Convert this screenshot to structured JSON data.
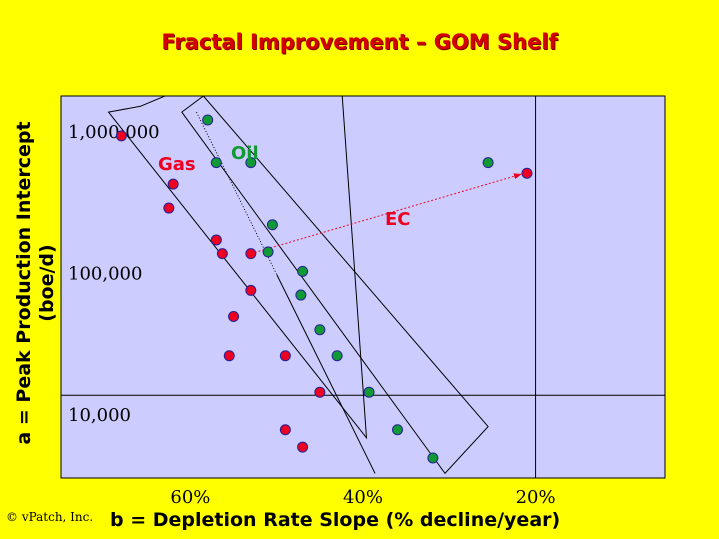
{
  "chart_data": {
    "type": "scatter",
    "title": "Fractal Improvement – GOM Shelf",
    "xlabel": "b = Depletion Rate Slope (% decline/year)",
    "ylabel_lines": [
      "a = Peak Production Intercept",
      "(boe/d)"
    ],
    "xlim": [
      75,
      5
    ],
    "y_scale": "log",
    "ylim": [
      2600,
      1300000
    ],
    "y_ticks": [
      {
        "value": 1000000,
        "label": "1,000,000"
      },
      {
        "value": 100000,
        "label": "100,000"
      },
      {
        "value": 10000,
        "label": "10,000"
      }
    ],
    "x_ticks": [
      {
        "value": 60,
        "label": "60%"
      },
      {
        "value": 40,
        "label": "40%"
      },
      {
        "value": 20,
        "label": "20%"
      }
    ],
    "gridlines": {
      "y": [
        10000
      ],
      "x": [
        20
      ]
    },
    "series": [
      {
        "name": "Gas",
        "color": "#ee0022",
        "points": [
          [
            68,
            680000
          ],
          [
            62,
            310000
          ],
          [
            62.5,
            210000
          ],
          [
            57,
            125000
          ],
          [
            56.3,
            100000
          ],
          [
            53,
            100000
          ],
          [
            53,
            55000
          ],
          [
            55,
            36000
          ],
          [
            55.5,
            19000
          ],
          [
            49,
            19000
          ],
          [
            45,
            10500
          ],
          [
            49,
            5700
          ],
          [
            47,
            4300
          ]
        ]
      },
      {
        "name": "Oil",
        "color": "#119933",
        "points": [
          [
            58,
            880000
          ],
          [
            57,
            440000
          ],
          [
            53,
            440000
          ],
          [
            50.5,
            160000
          ],
          [
            51,
            103000
          ],
          [
            47,
            75000
          ],
          [
            47.2,
            51000
          ],
          [
            45,
            29000
          ],
          [
            43,
            19000
          ],
          [
            39.3,
            10500
          ],
          [
            36,
            5700
          ],
          [
            31.9,
            3600
          ],
          [
            25.5,
            440000
          ]
        ]
      },
      {
        "name": "EC",
        "color": "#ee0022",
        "points": [
          [
            21,
            370000
          ]
        ]
      }
    ],
    "annotations": [
      {
        "text": "Gas",
        "color": "#ee0022"
      },
      {
        "text": "Oil",
        "color": "#119933"
      },
      {
        "text": "EC",
        "color": "#ee0022",
        "arrow_from": [
          53,
          100000
        ],
        "arrow_to": [
          21,
          370000
        ]
      }
    ],
    "envelopes": [
      {
        "name": "gas-envelope",
        "polygon": [
          [
            69.5,
            1000000
          ],
          [
            65.8,
            1100000
          ],
          [
            43,
            4200000
          ],
          [
            39.6,
            5000
          ]
        ],
        "bound": false
      },
      {
        "name": "oil-envelope",
        "polygon": [
          [
            61,
            1000000
          ],
          [
            58.5,
            1300000
          ],
          [
            25.5,
            6000
          ],
          [
            30.5,
            2800
          ]
        ],
        "bound": false
      }
    ],
    "trend_lines": [
      {
        "from": [
          59.3,
          1000000
        ],
        "to": [
          38.6,
          2800
        ],
        "style": "dotted-then-solid"
      }
    ],
    "grid": false,
    "legend": "inline labels"
  },
  "copyright": "© vPatch, Inc."
}
